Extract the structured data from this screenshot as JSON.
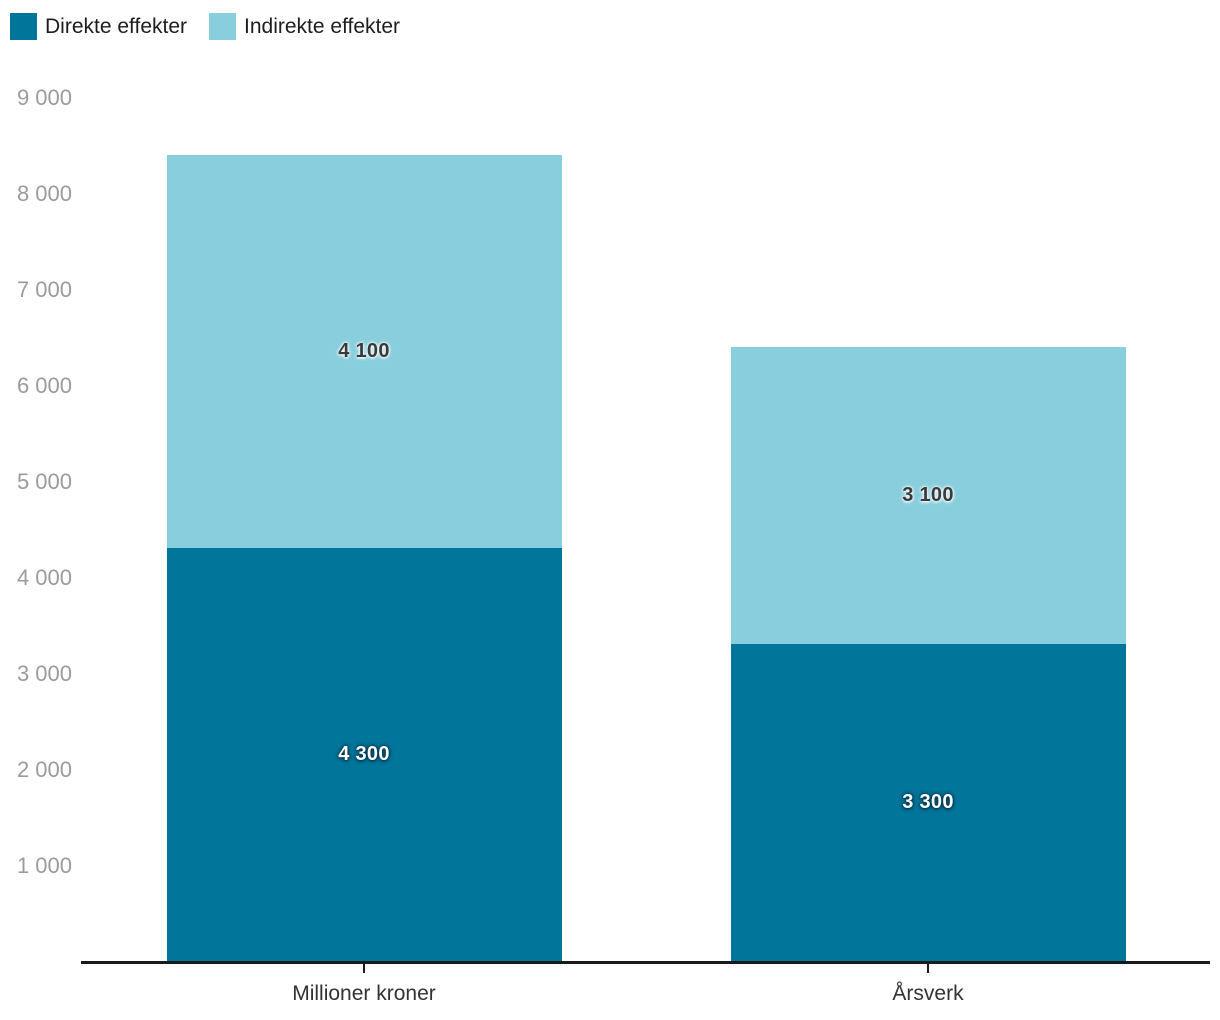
{
  "legend": {
    "items": [
      {
        "label": "Direkte effekter",
        "color": "#02759A"
      },
      {
        "label": "Indirekte effekter",
        "color": "#89CEDD"
      }
    ]
  },
  "y_axis": {
    "tick_values": [
      1000,
      2000,
      3000,
      4000,
      5000,
      6000,
      7000,
      8000,
      9000
    ],
    "tick_labels": [
      "1 000",
      "2 000",
      "3 000",
      "4 000",
      "5 000",
      "6 000",
      "7 000",
      "8 000",
      "9 000"
    ]
  },
  "chart_data": {
    "type": "bar",
    "stacked": true,
    "categories": [
      "Millioner kroner",
      "Årsverk"
    ],
    "series": [
      {
        "name": "Direkte effekter",
        "color": "#02759A",
        "values": [
          4300,
          3300
        ],
        "data_labels": [
          "4 300",
          "3 300"
        ]
      },
      {
        "name": "Indirekte effekter",
        "color": "#89CEDD",
        "values": [
          4100,
          3100
        ],
        "data_labels": [
          "4 100",
          "3 100"
        ]
      }
    ],
    "totals": [
      8400,
      6400
    ],
    "title": "",
    "xlabel": "",
    "ylabel": "",
    "ylim": [
      0,
      9000
    ],
    "grid": false,
    "legend_position": "top-left"
  },
  "colors": {
    "direct": "#02759A",
    "indirect": "#89CEDD",
    "axis_line": "#1a1a1a",
    "y_tick_text": "#9b9b9b",
    "category_text": "#333333",
    "background": "#ffffff"
  }
}
